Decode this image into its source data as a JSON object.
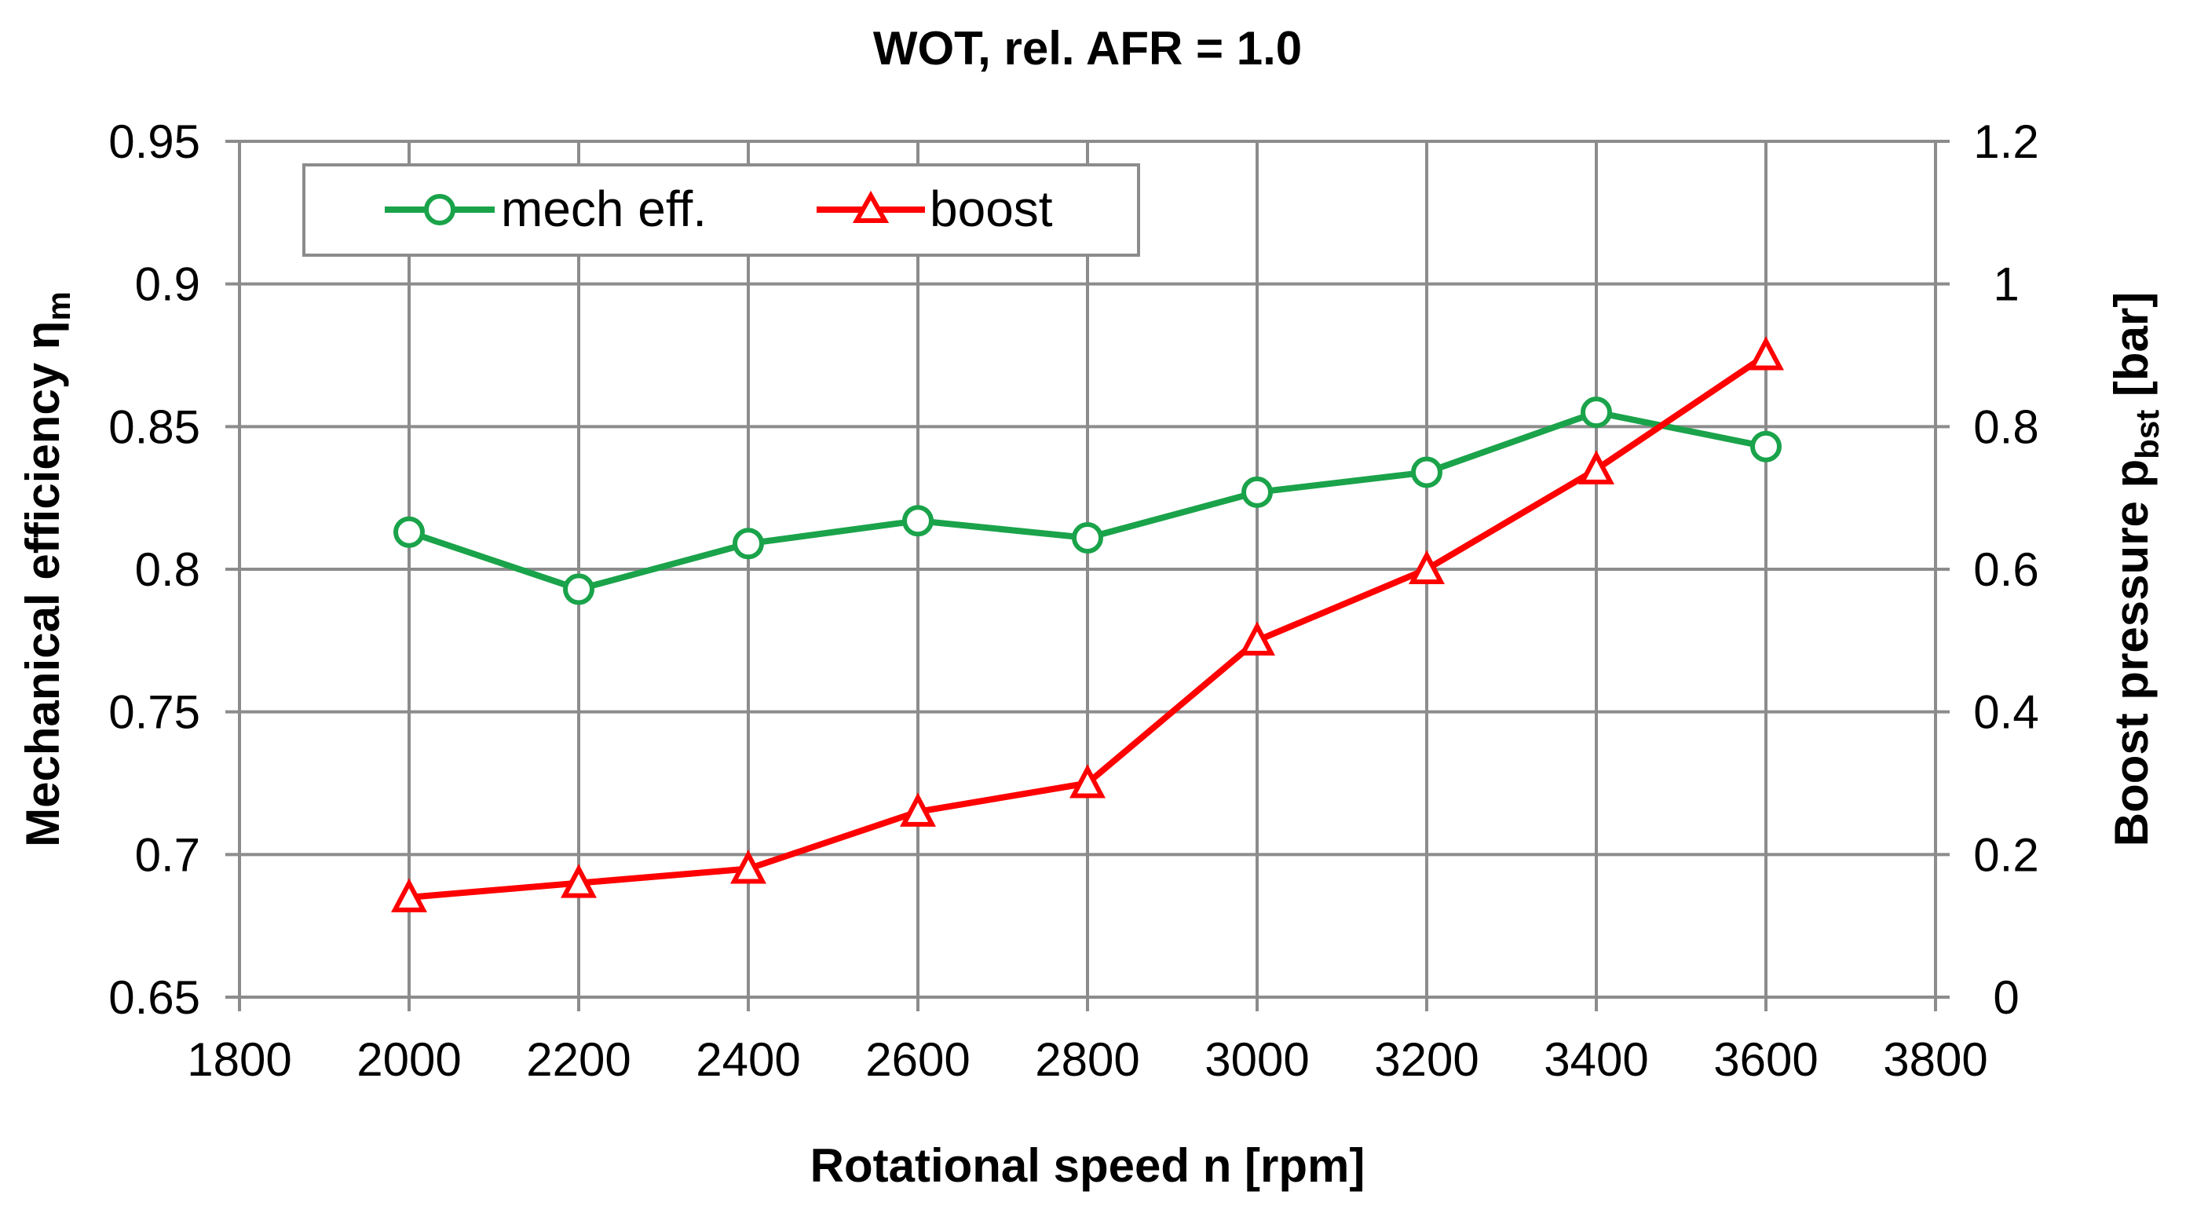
{
  "chart_data": {
    "type": "line",
    "title": "WOT, rel. AFR = 1.0",
    "xlabel": "Rotational speed n [rpm]",
    "ylabel_left": {
      "main": "Mechanical efficiency η",
      "sub": "m"
    },
    "ylabel_right": {
      "main": "Boost pressure p",
      "sub": "bst",
      "suffix": " [bar]"
    },
    "xlim": [
      1800,
      3800
    ],
    "ylim_left": [
      0.65,
      0.95
    ],
    "ylim_right": [
      0,
      1.2
    ],
    "x_ticks": [
      "1800",
      "2000",
      "2200",
      "2400",
      "2600",
      "2800",
      "3000",
      "3200",
      "3400",
      "3600",
      "3800"
    ],
    "y_left_ticks": [
      "0.95",
      "0.9",
      "0.85",
      "0.8",
      "0.75",
      "0.7",
      "0.65"
    ],
    "y_right_ticks": [
      "1.2",
      "1",
      "0.8",
      "0.6",
      "0.4",
      "0.2",
      "0"
    ],
    "grid": true,
    "legend_position": "top-left",
    "series": [
      {
        "name": "mech eff.",
        "axis": "left",
        "color": "#1aa34a",
        "marker": "circle",
        "x": [
          2000,
          2200,
          2400,
          2600,
          2800,
          3000,
          3200,
          3400,
          3600
        ],
        "values": [
          0.813,
          0.793,
          0.809,
          0.817,
          0.811,
          0.827,
          0.834,
          0.855,
          0.843
        ]
      },
      {
        "name": "boost",
        "axis": "right",
        "color": "#ff0000",
        "marker": "triangle",
        "x": [
          2000,
          2200,
          2400,
          2600,
          2800,
          3000,
          3200,
          3400,
          3600
        ],
        "values": [
          0.14,
          0.16,
          0.18,
          0.26,
          0.3,
          0.5,
          0.6,
          0.74,
          0.9
        ]
      }
    ]
  }
}
